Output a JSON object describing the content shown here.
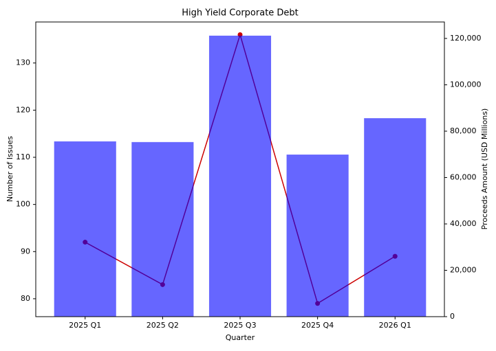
{
  "chart_data": {
    "type": "combo",
    "title": "High Yield Corporate Debt",
    "x_label": "Quarter",
    "y_label": "Number of Issues",
    "y2_label": "Proceeds Amount (USD Millions)",
    "categories": [
      "2025 Q1",
      "2025 Q2",
      "2025 Q3",
      "2025 Q4",
      "2026 Q1"
    ],
    "series": [
      {
        "type": "line",
        "color": "#cc0000",
        "values": [
          92,
          83,
          136,
          79,
          89
        ]
      },
      {
        "type": "bar",
        "axis": "y2",
        "color": "#0000ff",
        "values": [
          75600,
          75300,
          121200,
          69900,
          85600
        ]
      }
    ],
    "ylim": [
      76.2,
      138.7
    ],
    "yticks": [
      80,
      90,
      100,
      110,
      120,
      130
    ],
    "y2lim": [
      0,
      127100
    ],
    "y2ticks": [
      0,
      {
        "value": 20000,
        "label": "20,000"
      },
      {
        "value": 40000,
        "label": "40,000"
      },
      {
        "value": 60000,
        "label": "60,000"
      },
      {
        "value": 80000,
        "label": "80,000"
      },
      {
        "value": 100000,
        "label": "100,000"
      },
      {
        "value": 120000,
        "label": "120,000"
      }
    ],
    "y_color": "#cc0000",
    "y2_color": "#00008b"
  }
}
